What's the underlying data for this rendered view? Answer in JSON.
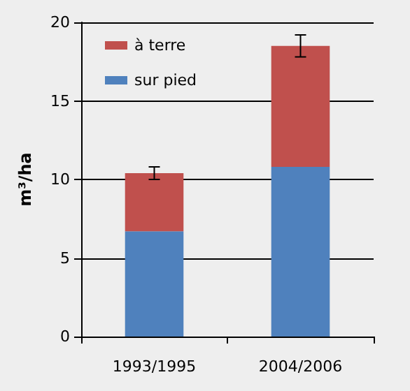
{
  "chart_data": {
    "type": "bar",
    "stacked": true,
    "ylabel": "m³/ha",
    "categories": [
      "1993/1995",
      "2004/2006"
    ],
    "series": [
      {
        "name": "sur pied",
        "color": "#4f81bd",
        "values": [
          6.7,
          10.8
        ]
      },
      {
        "name": "à terre",
        "color": "#c0504d",
        "values": [
          3.7,
          7.7
        ],
        "errors": [
          0.4,
          0.7
        ]
      }
    ],
    "ylim": [
      0,
      20
    ],
    "yticks": [
      0,
      5,
      10,
      15,
      20
    ],
    "grid": "y",
    "legend": "top left"
  }
}
